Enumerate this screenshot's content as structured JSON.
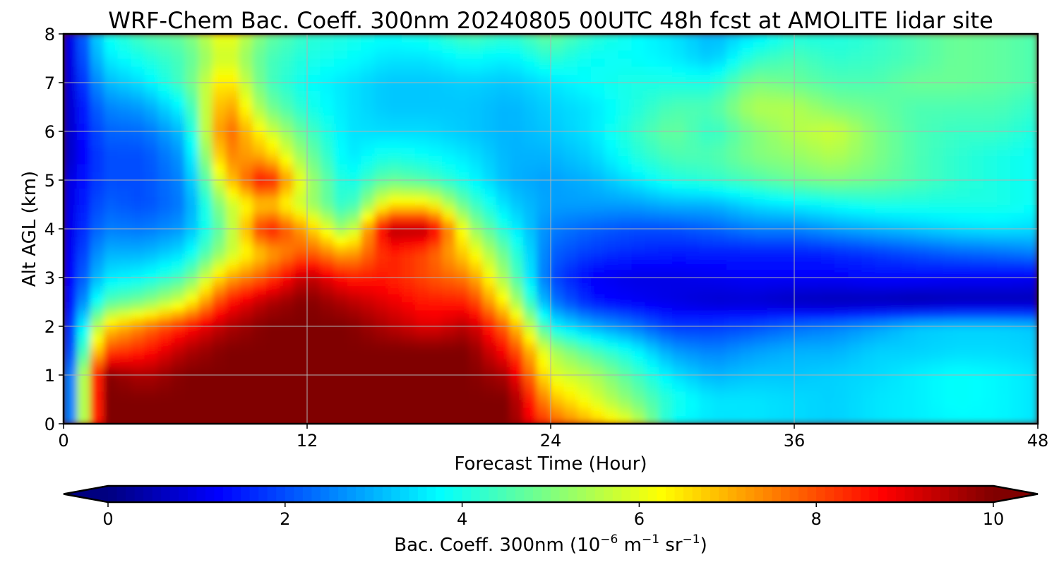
{
  "chart_data": {
    "type": "heatmap",
    "title": "WRF-Chem Bac. Coeff. 300nm  20240805 00UTC 48h fcst at AMOLITE lidar site",
    "xlabel": "Forecast Time (Hour)",
    "ylabel": "Alt AGL (km)",
    "xlim": [
      0,
      48
    ],
    "ylim": [
      0,
      8
    ],
    "xticks": [
      "0",
      "12",
      "24",
      "36",
      "48"
    ],
    "yticks": [
      "0",
      "1",
      "2",
      "3",
      "4",
      "5",
      "6",
      "7",
      "8"
    ],
    "grid": true,
    "colormap": "jet",
    "colorbar": {
      "orientation": "horizontal",
      "extend": "both",
      "vmin": 0,
      "vmax": 10,
      "ticks": [
        "0",
        "2",
        "4",
        "6",
        "8",
        "10"
      ],
      "label_prefix": "Bac. Coeff. 300nm  (10",
      "label_exp1": "−6",
      "label_mid": " m",
      "label_exp2": "−1",
      "label_mid2": " sr",
      "label_exp3": "−1",
      "label_suffix": ")"
    },
    "x": [
      0,
      2,
      4,
      6,
      8,
      10,
      12,
      14,
      16,
      18,
      20,
      22,
      24,
      26,
      28,
      30,
      32,
      34,
      36,
      38,
      40,
      42,
      44,
      46,
      48
    ],
    "y": [
      0,
      0.5,
      1,
      1.5,
      2,
      2.5,
      3,
      3.5,
      4,
      4.5,
      5,
      5.5,
      6,
      6.5,
      7,
      7.5,
      8
    ],
    "z": [
      [
        1.0,
        10,
        10,
        10,
        10,
        10,
        10,
        10,
        10,
        10,
        10,
        10,
        8.0,
        7.0,
        6.0,
        3.8,
        3.5,
        3.5,
        3.4,
        3.3,
        3.5,
        3.6,
        3.7,
        3.7,
        3.5
      ],
      [
        1.0,
        10,
        10,
        10,
        10,
        10,
        10,
        10,
        10,
        10,
        10,
        10,
        7.0,
        6.0,
        5.0,
        4.0,
        3.5,
        3.5,
        3.4,
        3.3,
        3.5,
        3.6,
        3.8,
        3.7,
        3.5
      ],
      [
        1.0,
        10,
        9.5,
        10,
        10,
        10,
        10,
        10,
        10,
        10,
        10,
        9.5,
        6.0,
        5.5,
        4.5,
        3.5,
        3.0,
        3.2,
        3.2,
        3.3,
        3.4,
        3.6,
        3.8,
        3.7,
        3.5
      ],
      [
        0.8,
        8.0,
        8.5,
        9.5,
        10,
        10,
        10,
        10,
        10,
        10,
        10,
        8.5,
        5.5,
        4.5,
        3.8,
        2.8,
        2.5,
        2.8,
        3.0,
        3.0,
        3.3,
        3.3,
        3.4,
        3.4,
        3.3
      ],
      [
        0.8,
        6.5,
        7.5,
        8.5,
        9.5,
        10,
        10,
        10,
        9.5,
        9.0,
        9.5,
        7.5,
        3.8,
        3.0,
        2.5,
        1.8,
        1.8,
        2.0,
        2.3,
        2.5,
        2.8,
        3.2,
        3.3,
        3.3,
        3.2
      ],
      [
        0.8,
        4.5,
        5.0,
        6.0,
        8.5,
        9.5,
        10,
        9.5,
        9.0,
        8.5,
        8.5,
        6.0,
        2.5,
        1.5,
        1.2,
        1.0,
        0.8,
        0.8,
        0.6,
        0.5,
        0.5,
        0.4,
        0.5,
        0.5,
        0.5
      ],
      [
        0.8,
        3.5,
        3.8,
        4.5,
        7.0,
        8.0,
        9.5,
        8.5,
        8.5,
        8.0,
        7.5,
        5.0,
        2.0,
        1.2,
        1.0,
        1.0,
        1.1,
        1.2,
        1.2,
        1.2,
        1.3,
        1.3,
        1.2,
        1.2,
        1.1
      ],
      [
        0.8,
        3.0,
        3.0,
        3.5,
        5.5,
        7.0,
        8.0,
        7.0,
        8.5,
        8.0,
        6.5,
        4.5,
        2.2,
        1.8,
        1.6,
        1.5,
        1.5,
        1.5,
        1.5,
        1.6,
        1.8,
        2.0,
        2.2,
        2.3,
        2.5
      ],
      [
        0.8,
        2.5,
        2.4,
        2.8,
        5.0,
        8.8,
        7.0,
        5.0,
        9.5,
        9.5,
        5.5,
        3.8,
        2.5,
        2.2,
        2.0,
        2.0,
        2.2,
        2.5,
        2.5,
        2.8,
        3.0,
        3.2,
        3.4,
        3.5,
        3.4
      ],
      [
        0.8,
        2.2,
        2.0,
        2.5,
        5.5,
        7.0,
        5.5,
        4.0,
        6.5,
        6.5,
        4.5,
        3.3,
        2.8,
        2.8,
        2.8,
        3.0,
        3.0,
        3.4,
        3.6,
        3.8,
        4.0,
        4.0,
        4.0,
        4.0,
        3.8
      ],
      [
        0.8,
        2.0,
        2.0,
        2.6,
        6.5,
        9.0,
        5.5,
        3.8,
        4.8,
        4.5,
        3.8,
        3.0,
        2.8,
        3.0,
        3.5,
        4.0,
        4.2,
        4.5,
        4.8,
        5.0,
        4.8,
        4.5,
        4.2,
        4.0,
        3.8
      ],
      [
        0.5,
        2.0,
        2.0,
        2.8,
        7.5,
        7.0,
        5.0,
        3.5,
        4.0,
        3.8,
        3.5,
        3.0,
        3.0,
        3.3,
        4.0,
        4.5,
        4.5,
        5.0,
        5.2,
        5.5,
        5.0,
        4.5,
        4.2,
        4.0,
        3.8
      ],
      [
        0.5,
        2.2,
        2.3,
        3.2,
        8.0,
        6.0,
        4.5,
        3.5,
        3.4,
        3.4,
        3.2,
        3.0,
        3.2,
        3.5,
        4.2,
        4.8,
        4.2,
        5.0,
        5.5,
        5.8,
        5.0,
        4.5,
        4.3,
        4.3,
        4.0
      ],
      [
        0.5,
        2.5,
        2.8,
        3.8,
        7.5,
        5.0,
        4.0,
        3.5,
        3.2,
        3.2,
        3.2,
        3.0,
        3.3,
        3.5,
        4.0,
        4.5,
        4.5,
        5.5,
        5.5,
        5.0,
        4.8,
        4.5,
        4.5,
        4.5,
        4.2
      ],
      [
        0.5,
        3.0,
        3.5,
        4.5,
        6.8,
        4.5,
        3.8,
        3.5,
        3.2,
        3.2,
        3.3,
        3.2,
        3.5,
        3.8,
        4.0,
        4.0,
        4.0,
        5.0,
        4.8,
        4.5,
        4.5,
        4.8,
        4.8,
        4.7,
        4.5
      ],
      [
        0.5,
        3.5,
        4.0,
        4.5,
        6.0,
        4.5,
        4.0,
        3.8,
        3.5,
        3.5,
        3.8,
        3.6,
        4.2,
        3.8,
        3.8,
        3.6,
        3.2,
        4.2,
        4.5,
        4.2,
        4.3,
        4.5,
        4.8,
        4.7,
        4.5
      ],
      [
        0.5,
        3.8,
        4.5,
        4.8,
        6.3,
        4.8,
        4.2,
        4.0,
        3.8,
        4.0,
        4.5,
        4.2,
        4.8,
        4.2,
        3.8,
        3.5,
        3.0,
        3.5,
        4.0,
        4.0,
        4.2,
        4.5,
        4.8,
        4.7,
        4.5
      ]
    ]
  }
}
